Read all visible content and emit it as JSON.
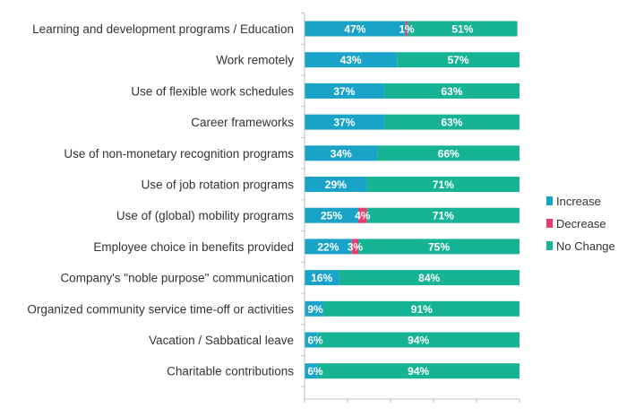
{
  "chart_data": {
    "type": "bar",
    "orientation": "horizontal",
    "stacked": true,
    "title": "",
    "xlabel": "",
    "ylabel": "",
    "xlim": [
      0,
      100
    ],
    "grid": false,
    "legend_position": "right",
    "categories": [
      "Learning and development programs / Education",
      "Work remotely",
      "Use of flexible work schedules",
      "Career frameworks",
      "Use of non-monetary recognition programs",
      "Use of job rotation programs",
      "Use of (global) mobility programs",
      "Employee choice in benefits provided",
      "Company's \"noble purpose\" communication",
      "Organized community service time-off or activities",
      "Vacation / Sabbatical leave",
      "Charitable contributions"
    ],
    "series": [
      {
        "name": "Increase",
        "color": "#1aa3c9",
        "values": [
          47,
          43,
          37,
          37,
          34,
          29,
          25,
          22,
          16,
          9,
          6,
          6
        ],
        "labels": [
          "47%",
          "43%",
          "37%",
          "37%",
          "34%",
          "29%",
          "25%",
          "22%",
          "16%",
          "9%",
          "6%",
          "6%"
        ]
      },
      {
        "name": "Decrease",
        "color": "#e83c6e",
        "values": [
          1,
          0,
          0,
          0,
          0,
          0,
          4,
          3,
          0,
          0,
          0,
          0
        ],
        "labels": [
          "1%",
          "",
          "",
          "",
          "",
          "",
          "4%",
          "3%",
          "",
          "",
          "",
          ""
        ]
      },
      {
        "name": "No Change",
        "color": "#16b394",
        "values": [
          51,
          57,
          63,
          63,
          66,
          71,
          71,
          75,
          84,
          91,
          94,
          94
        ],
        "labels": [
          "51%",
          "57%",
          "63%",
          "63%",
          "66%",
          "71%",
          "71%",
          "75%",
          "84%",
          "91%",
          "94%",
          "94%"
        ]
      }
    ]
  }
}
